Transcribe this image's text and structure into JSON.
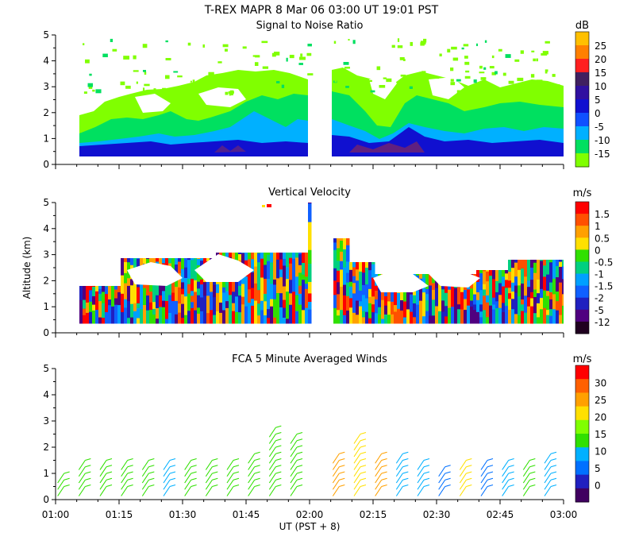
{
  "figure": {
    "main_title": "T-REX   MAPR   8 Mar 06   03:00 UT   19:01   PST",
    "x_axis_label": "UT  (PST + 8)",
    "x_ticks": [
      "01:00",
      "01:15",
      "01:30",
      "01:45",
      "02:00",
      "02:15",
      "02:30",
      "02:45",
      "03:00"
    ],
    "colors": {
      "snr_scale": [
        "#80ff00",
        "#00e060",
        "#00b0ff",
        "#1050ff",
        "#1010d0",
        "#3010a0",
        "#402060",
        "#ff2020",
        "#ff8000",
        "#ffc000"
      ],
      "vel_scale": [
        "#200020",
        "#500080",
        "#2020c0",
        "#1060ff",
        "#00a0ff",
        "#00d080",
        "#30e000",
        "#ffe000",
        "#ffa000",
        "#ff5000",
        "#ff0000"
      ],
      "wind_scale": [
        "#400060",
        "#2020c0",
        "#0070ff",
        "#00b0ff",
        "#30e000",
        "#80ff00",
        "#ffe000",
        "#ffa000",
        "#ff6000",
        "#ff0000"
      ]
    }
  },
  "chart_data": [
    {
      "type": "heatmap",
      "title": "Signal to Noise Ratio",
      "ylabel": "",
      "ylim": [
        0,
        5
      ],
      "y_ticks": [
        "0",
        "1",
        "2",
        "3",
        "4",
        "5"
      ],
      "xlim": [
        "01:00",
        "03:00"
      ],
      "colorbar_unit": "dB",
      "colorbar_labels": [
        "25",
        "20",
        "15",
        "10",
        "5",
        "0",
        "-5",
        "-10",
        "-15"
      ],
      "data_gap": [
        "01:59",
        "02:01"
      ]
    },
    {
      "type": "heatmap",
      "title": "Vertical Velocity",
      "ylabel": "Altitude (km)",
      "ylim": [
        0,
        5
      ],
      "y_ticks": [
        "0",
        "1",
        "2",
        "3",
        "4",
        "5"
      ],
      "xlim": [
        "01:00",
        "03:00"
      ],
      "colorbar_unit": "m/s",
      "colorbar_labels": [
        "1.5",
        "1",
        "0.5",
        "0",
        "-0.5",
        "-1",
        "-1.5",
        "-2",
        "-5",
        "-12"
      ],
      "data_gap": [
        "01:59",
        "02:01"
      ]
    },
    {
      "type": "scatter",
      "title": "FCA 5 Minute Averaged Winds",
      "ylabel": "",
      "ylim": [
        0,
        5
      ],
      "y_ticks": [
        "0",
        "1",
        "2",
        "3",
        "4",
        "5"
      ],
      "xlim": [
        "01:00",
        "03:00"
      ],
      "colorbar_unit": "m/s",
      "colorbar_labels": [
        "30",
        "25",
        "20",
        "15",
        "10",
        "5",
        "0"
      ],
      "wind_columns": [
        {
          "time_min": 2,
          "top_km": 1.0,
          "speed": 14
        },
        {
          "time_min": 7,
          "top_km": 1.5,
          "speed": 14
        },
        {
          "time_min": 12,
          "top_km": 1.5,
          "speed": 15
        },
        {
          "time_min": 17,
          "top_km": 1.5,
          "speed": 15
        },
        {
          "time_min": 22,
          "top_km": 1.5,
          "speed": 16
        },
        {
          "time_min": 27,
          "top_km": 1.6,
          "speed": 10
        },
        {
          "time_min": 32,
          "top_km": 1.6,
          "speed": 15
        },
        {
          "time_min": 37,
          "top_km": 1.6,
          "speed": 15
        },
        {
          "time_min": 42,
          "top_km": 1.7,
          "speed": 15
        },
        {
          "time_min": 47,
          "top_km": 1.8,
          "speed": 14
        },
        {
          "time_min": 52,
          "top_km": 2.8,
          "speed": 15
        },
        {
          "time_min": 57,
          "top_km": 2.6,
          "speed": 14
        },
        {
          "time_min": 67,
          "top_km": 1.9,
          "speed": 25
        },
        {
          "time_min": 72,
          "top_km": 2.5,
          "speed": 20
        },
        {
          "time_min": 77,
          "top_km": 1.9,
          "speed": 25
        },
        {
          "time_min": 82,
          "top_km": 1.8,
          "speed": 10
        },
        {
          "time_min": 87,
          "top_km": 1.5,
          "speed": 10
        },
        {
          "time_min": 92,
          "top_km": 1.4,
          "speed": 9
        },
        {
          "time_min": 97,
          "top_km": 1.6,
          "speed": 20
        },
        {
          "time_min": 102,
          "top_km": 1.5,
          "speed": 9
        },
        {
          "time_min": 107,
          "top_km": 1.5,
          "speed": 10
        },
        {
          "time_min": 112,
          "top_km": 1.7,
          "speed": 15
        },
        {
          "time_min": 117,
          "top_km": 1.8,
          "speed": 10
        }
      ]
    }
  ]
}
